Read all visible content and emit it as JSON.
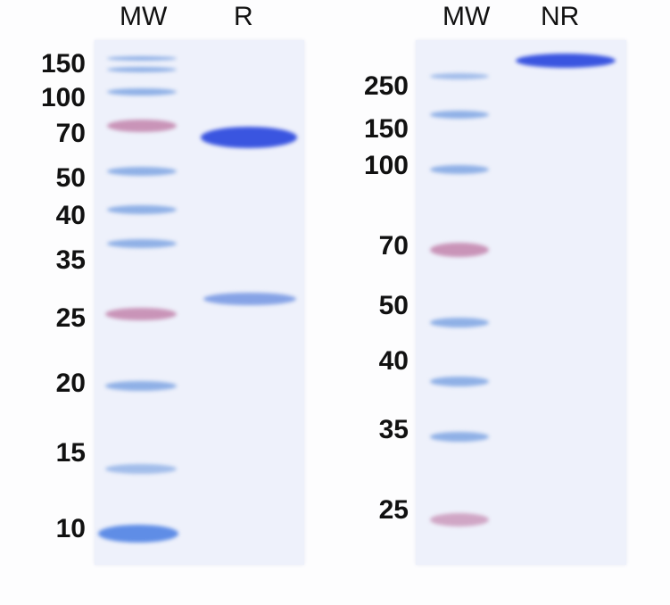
{
  "panels": [
    {
      "lanes": [
        "MW",
        "R"
      ],
      "markers": [
        "150",
        "100",
        "70",
        "50",
        "40",
        "35",
        "25",
        "20",
        "15",
        "10"
      ]
    },
    {
      "lanes": [
        "MW",
        "NR"
      ],
      "markers": [
        "250",
        "150",
        "100",
        "70",
        "50",
        "40",
        "35",
        "25"
      ]
    }
  ],
  "colors": {
    "gel": "#eef1fb",
    "ladder_band": "#8fb0e6",
    "pink_marker": "#c994b8",
    "sample_band": "#3a55e0"
  }
}
